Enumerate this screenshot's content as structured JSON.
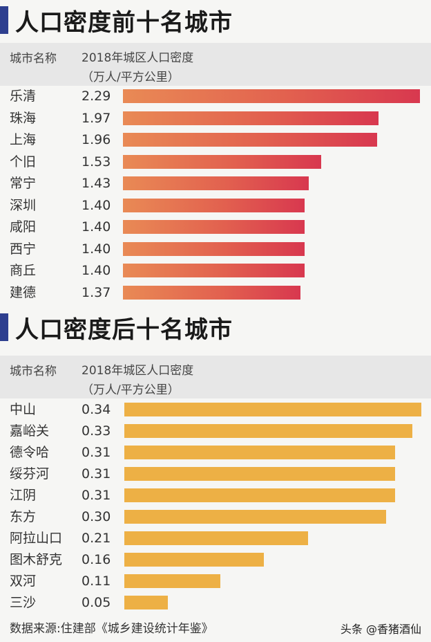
{
  "top_section": {
    "title": "人口密度前十名城市",
    "header_city": "城市名称",
    "header_metric_line1": "2018年城区人口密度",
    "header_metric_line2": "（万人/平方公里）"
  },
  "bottom_section": {
    "title": "人口密度后十名城市",
    "header_city": "城市名称",
    "header_metric_line1": "2018年城区人口密度",
    "header_metric_line2": "（万人/平方公里）"
  },
  "source": "数据来源:住建部《城乡建设统计年鉴》",
  "watermark": "头条 @香猪酒仙",
  "colors": {
    "title_bar": "#2e3f8f",
    "top_bar_start": "#e98a55",
    "top_bar_end": "#d8384f",
    "bottom_bar": "#edb045"
  },
  "chart_data": [
    {
      "type": "bar",
      "orientation": "horizontal",
      "title": "人口密度前十名城市",
      "value_label": "2018年城区人口密度（万人/平方公里）",
      "categories": [
        "乐清",
        "珠海",
        "上海",
        "个旧",
        "常宁",
        "深圳",
        "咸阳",
        "西宁",
        "商丘",
        "建德"
      ],
      "values": [
        2.29,
        1.97,
        1.96,
        1.53,
        1.43,
        1.4,
        1.4,
        1.4,
        1.4,
        1.37
      ],
      "value_labels": [
        "2.29",
        "1.97",
        "1.96",
        "1.53",
        "1.43",
        "1.40",
        "1.40",
        "1.40",
        "1.40",
        "1.37"
      ]
    },
    {
      "type": "bar",
      "orientation": "horizontal",
      "title": "人口密度后十名城市",
      "value_label": "2018年城区人口密度（万人/平方公里）",
      "categories": [
        "中山",
        "嘉峪关",
        "德令哈",
        "绥芬河",
        "江阴",
        "东方",
        "阿拉山口",
        "图木舒克",
        "双河",
        "三沙"
      ],
      "values": [
        0.34,
        0.33,
        0.31,
        0.31,
        0.31,
        0.3,
        0.21,
        0.16,
        0.11,
        0.05
      ],
      "value_labels": [
        "0.34",
        "0.33",
        "0.31",
        "0.31",
        "0.31",
        "0.30",
        "0.21",
        "0.16",
        "0.11",
        "0.05"
      ]
    }
  ]
}
